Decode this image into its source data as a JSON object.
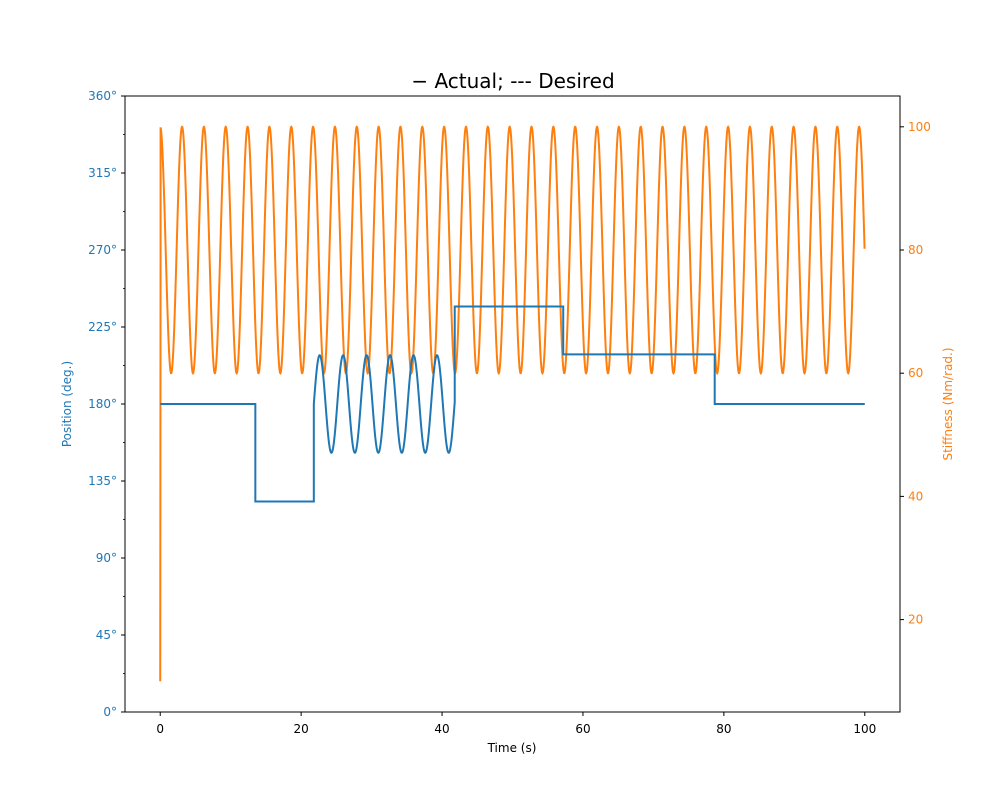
{
  "chart_data": {
    "type": "line",
    "title": "− Actual; --- Desired",
    "xlabel": "Time (s)",
    "ylabel_left": "Position (deg.)",
    "ylabel_right": "Stiffness (Nm/rad.)",
    "xlim": [
      -5,
      105
    ],
    "ylim_left": [
      0,
      360
    ],
    "ylim_right": [
      5,
      105
    ],
    "x_ticks": [
      "0",
      "20",
      "40",
      "60",
      "80",
      "100"
    ],
    "x_tick_values": [
      0,
      20,
      40,
      60,
      80,
      100
    ],
    "y_left_ticks": [
      "0°",
      "45°",
      "90°",
      "135°",
      "180°",
      "225°",
      "270°",
      "315°",
      "360°"
    ],
    "y_left_tick_values": [
      0,
      45,
      90,
      135,
      180,
      225,
      270,
      315,
      360
    ],
    "y_right_ticks": [
      "20",
      "40",
      "60",
      "80",
      "100"
    ],
    "y_right_tick_values": [
      20,
      40,
      60,
      80,
      100
    ],
    "grid": false,
    "colors": {
      "position": "#1f77b4",
      "stiffness": "#ff7f0e"
    },
    "series": [
      {
        "axis": "left",
        "color": "#1f77b4",
        "description": "position steps and sine segment",
        "segments": [
          {
            "type": "const",
            "x0": 0,
            "x1": 13.5,
            "y": 180
          },
          {
            "type": "const",
            "x0": 13.5,
            "x1": 21.8,
            "y": 123
          },
          {
            "type": "sine",
            "x0": 21.8,
            "x1": 41.8,
            "center": 180,
            "amplitude": 28.5,
            "period": 3.33,
            "phase_start": "zero_rising"
          },
          {
            "type": "const",
            "x0": 41.8,
            "x1": 57.2,
            "y": 237
          },
          {
            "type": "const",
            "x0": 57.2,
            "x1": 78.7,
            "y": 209
          },
          {
            "type": "const",
            "x0": 78.7,
            "x1": 100,
            "y": 180
          }
        ]
      },
      {
        "axis": "right",
        "color": "#ff7f0e",
        "description": "stiffness sinusoid",
        "start_value": 10,
        "min": 60,
        "max": 100,
        "period": 3.1,
        "x_start": 0,
        "x_end": 100
      }
    ]
  }
}
